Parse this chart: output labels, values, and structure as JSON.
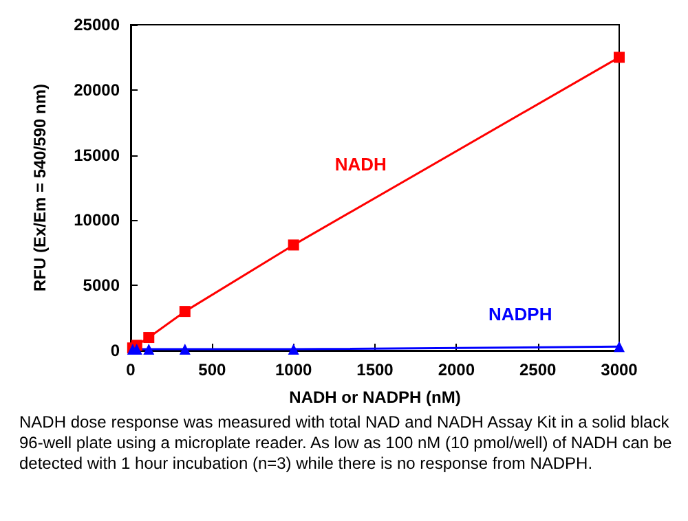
{
  "chart_data": {
    "type": "line",
    "xlabel": "NADH or NADPH (nM)",
    "ylabel": "RFU (Ex/Em = 540/590 nm)",
    "xlim": [
      0,
      3000
    ],
    "xticks": [
      0,
      500,
      1000,
      1500,
      2000,
      2500,
      3000
    ],
    "ylim": [
      0,
      25000
    ],
    "yticks": [
      0,
      5000,
      10000,
      15000,
      20000,
      25000
    ],
    "series": [
      {
        "name": "NADH",
        "color": "#ff0000",
        "marker": "square",
        "x": [
          12,
          37,
          111,
          333,
          1000,
          3000
        ],
        "values": [
          200,
          400,
          1000,
          3000,
          8100,
          22500
        ]
      },
      {
        "name": "NADPH",
        "color": "#0000ff",
        "marker": "triangle",
        "x": [
          12,
          37,
          111,
          333,
          1000,
          3000
        ],
        "values": [
          100,
          100,
          100,
          100,
          100,
          300
        ]
      }
    ],
    "grid": false,
    "legend": false,
    "annotations": [
      "NADH dose response was measured with total NAD and NADH Assay Kit in a solid black 96-well plate using a microplate reader. As low as 100 nM (10 pmol/well) of NADH can be detected with 1 hour incubation (n=3) while there is no response from NADPH."
    ]
  }
}
